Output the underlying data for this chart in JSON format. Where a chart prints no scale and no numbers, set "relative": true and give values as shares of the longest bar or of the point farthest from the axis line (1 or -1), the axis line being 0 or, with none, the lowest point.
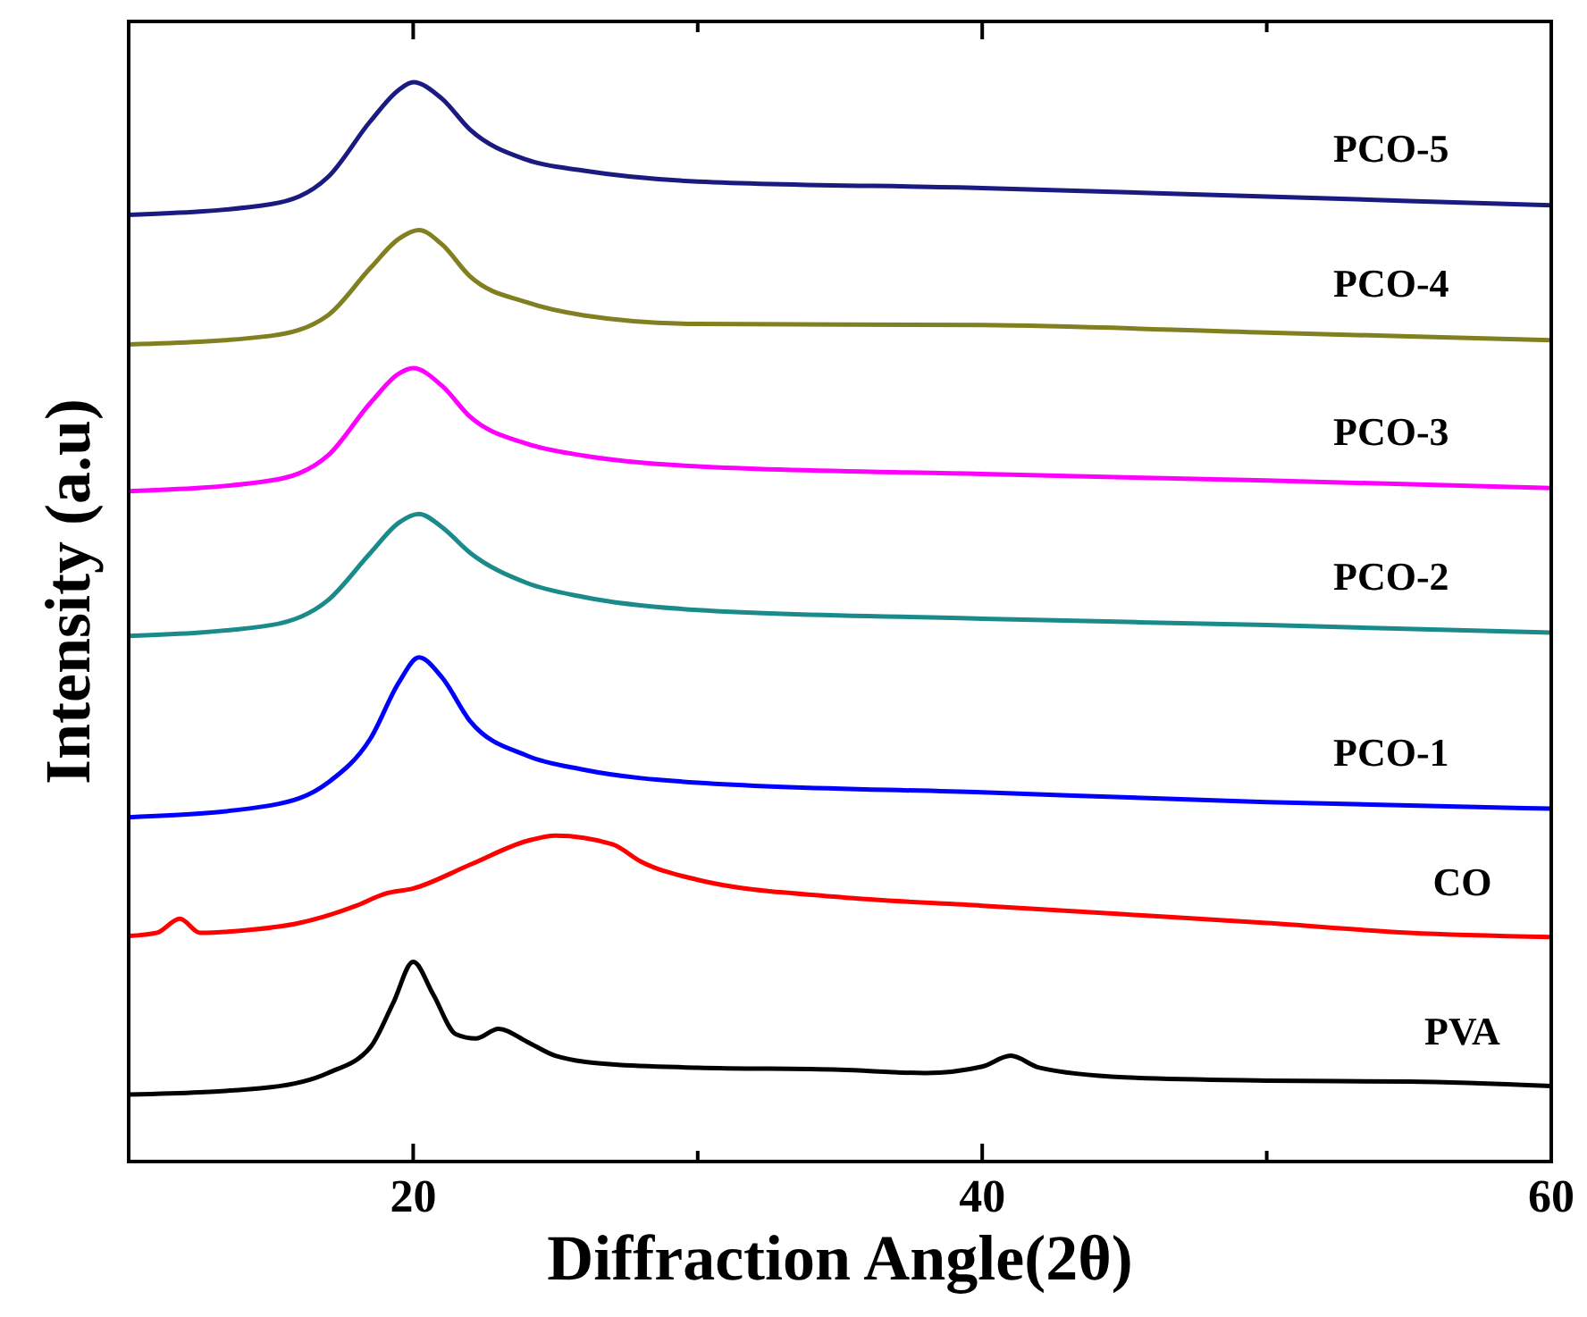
{
  "chart_data": {
    "type": "line",
    "relative": true,
    "xlabel": "Diffraction Angle(2θ)",
    "ylabel": "Intensity (a.u)",
    "xlim": [
      10,
      60
    ],
    "xticks": [
      20,
      {
        "value": 30,
        "label": null
      },
      40,
      {
        "value": 50,
        "label": null
      },
      60
    ],
    "legend": false,
    "grid": false,
    "marker": "none",
    "line_style": "solid",
    "series": [
      {
        "name": "PVA",
        "color": "#000000",
        "x": [
          10,
          15,
          17,
          18.5,
          19.3,
          20,
          20.7,
          21.5,
          22.2,
          23,
          24,
          25,
          27,
          30,
          35,
          38,
          40,
          41,
          42,
          45,
          50,
          55,
          60
        ],
        "values": [
          0.062,
          0.069,
          0.082,
          0.106,
          0.147,
          0.185,
          0.155,
          0.118,
          0.114,
          0.123,
          0.111,
          0.098,
          0.09,
          0.087,
          0.085,
          0.082,
          0.088,
          0.098,
          0.087,
          0.078,
          0.075,
          0.074,
          0.07
        ]
      },
      {
        "name": "CO",
        "color": "#ff0000",
        "x": [
          10,
          11,
          11.8,
          12.5,
          14,
          16,
          18,
          19,
          20,
          22,
          24,
          25,
          27,
          28,
          30,
          35,
          40,
          45,
          50,
          55,
          60
        ],
        "values": [
          0.209,
          0.212,
          0.225,
          0.212,
          0.214,
          0.221,
          0.237,
          0.248,
          0.253,
          0.275,
          0.297,
          0.302,
          0.294,
          0.278,
          0.261,
          0.245,
          0.237,
          0.229,
          0.221,
          0.212,
          0.208
        ]
      },
      {
        "name": "PCO-1",
        "color": "#0000ff",
        "x": [
          10,
          15,
          17,
          18.5,
          19.5,
          20.2,
          21,
          22,
          24,
          26,
          30,
          40,
          50,
          60
        ],
        "values": [
          0.319,
          0.33,
          0.351,
          0.392,
          0.444,
          0.467,
          0.449,
          0.408,
          0.376,
          0.363,
          0.351,
          0.342,
          0.333,
          0.327
        ]
      },
      {
        "name": "PCO-2",
        "color": "#1a8a8a",
        "x": [
          10,
          15,
          17,
          18.5,
          19.5,
          20.2,
          21,
          22,
          24,
          26,
          30,
          40,
          50,
          60
        ],
        "values": [
          0.487,
          0.497,
          0.52,
          0.564,
          0.592,
          0.6,
          0.588,
          0.564,
          0.536,
          0.523,
          0.511,
          0.503,
          0.497,
          0.49
        ]
      },
      {
        "name": "PCO-3",
        "color": "#ff00ff",
        "x": [
          10,
          15,
          17,
          18.5,
          19.5,
          20,
          21,
          22,
          24,
          26,
          30,
          40,
          50,
          60
        ],
        "values": [
          0.621,
          0.631,
          0.654,
          0.703,
          0.73,
          0.735,
          0.719,
          0.69,
          0.665,
          0.654,
          0.644,
          0.637,
          0.631,
          0.624
        ]
      },
      {
        "name": "PCO-4",
        "color": "#808020",
        "x": [
          10,
          15,
          17,
          18.5,
          19.5,
          20.2,
          21,
          22,
          24,
          26,
          30,
          40,
          50,
          60
        ],
        "values": [
          0.757,
          0.765,
          0.784,
          0.828,
          0.855,
          0.863,
          0.85,
          0.82,
          0.796,
          0.784,
          0.776,
          0.775,
          0.768,
          0.761
        ]
      },
      {
        "name": "PCO-5",
        "color": "#1a1a80",
        "x": [
          10,
          15,
          17,
          18.5,
          19.5,
          20,
          21,
          22,
          24,
          26,
          30,
          40,
          50,
          60
        ],
        "values": [
          0.877,
          0.887,
          0.912,
          0.964,
          0.993,
          1.0,
          0.985,
          0.956,
          0.928,
          0.918,
          0.908,
          0.902,
          0.894,
          0.886
        ]
      }
    ]
  }
}
